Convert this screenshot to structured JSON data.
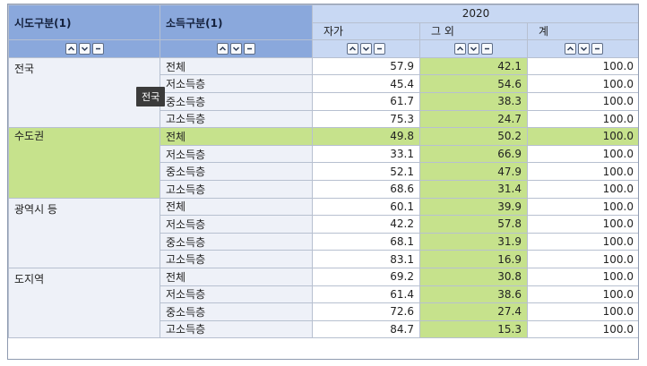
{
  "header": {
    "dim1_label": "시도구분(1)",
    "dim2_label": "소득구분(1)",
    "year": "2020",
    "columns": [
      "자가",
      "그 외",
      "계"
    ]
  },
  "tooltip": "전국",
  "regions": [
    {
      "name": "전국",
      "rows": [
        {
          "income": "전체",
          "v": [
            "57.9",
            "42.1",
            "100.0"
          ]
        },
        {
          "income": "저소득층",
          "v": [
            "45.4",
            "54.6",
            "100.0"
          ]
        },
        {
          "income": "중소득층",
          "v": [
            "61.7",
            "38.3",
            "100.0"
          ]
        },
        {
          "income": "고소득층",
          "v": [
            "75.3",
            "24.7",
            "100.0"
          ]
        }
      ]
    },
    {
      "name": "수도권",
      "rows": [
        {
          "income": "전체",
          "v": [
            "49.8",
            "50.2",
            "100.0"
          ]
        },
        {
          "income": "저소득층",
          "v": [
            "33.1",
            "66.9",
            "100.0"
          ]
        },
        {
          "income": "중소득층",
          "v": [
            "52.1",
            "47.9",
            "100.0"
          ]
        },
        {
          "income": "고소득층",
          "v": [
            "68.6",
            "31.4",
            "100.0"
          ]
        }
      ]
    },
    {
      "name": "광역시 등",
      "rows": [
        {
          "income": "전체",
          "v": [
            "60.1",
            "39.9",
            "100.0"
          ]
        },
        {
          "income": "저소득층",
          "v": [
            "42.2",
            "57.8",
            "100.0"
          ]
        },
        {
          "income": "중소득층",
          "v": [
            "68.1",
            "31.9",
            "100.0"
          ]
        },
        {
          "income": "고소득층",
          "v": [
            "83.1",
            "16.9",
            "100.0"
          ]
        }
      ]
    },
    {
      "name": "도지역",
      "rows": [
        {
          "income": "전체",
          "v": [
            "69.2",
            "30.8",
            "100.0"
          ]
        },
        {
          "income": "저소득층",
          "v": [
            "61.4",
            "38.6",
            "100.0"
          ]
        },
        {
          "income": "중소득층",
          "v": [
            "72.6",
            "27.4",
            "100.0"
          ]
        },
        {
          "income": "고소득층",
          "v": [
            "84.7",
            "15.3",
            "100.0"
          ]
        }
      ]
    }
  ]
}
